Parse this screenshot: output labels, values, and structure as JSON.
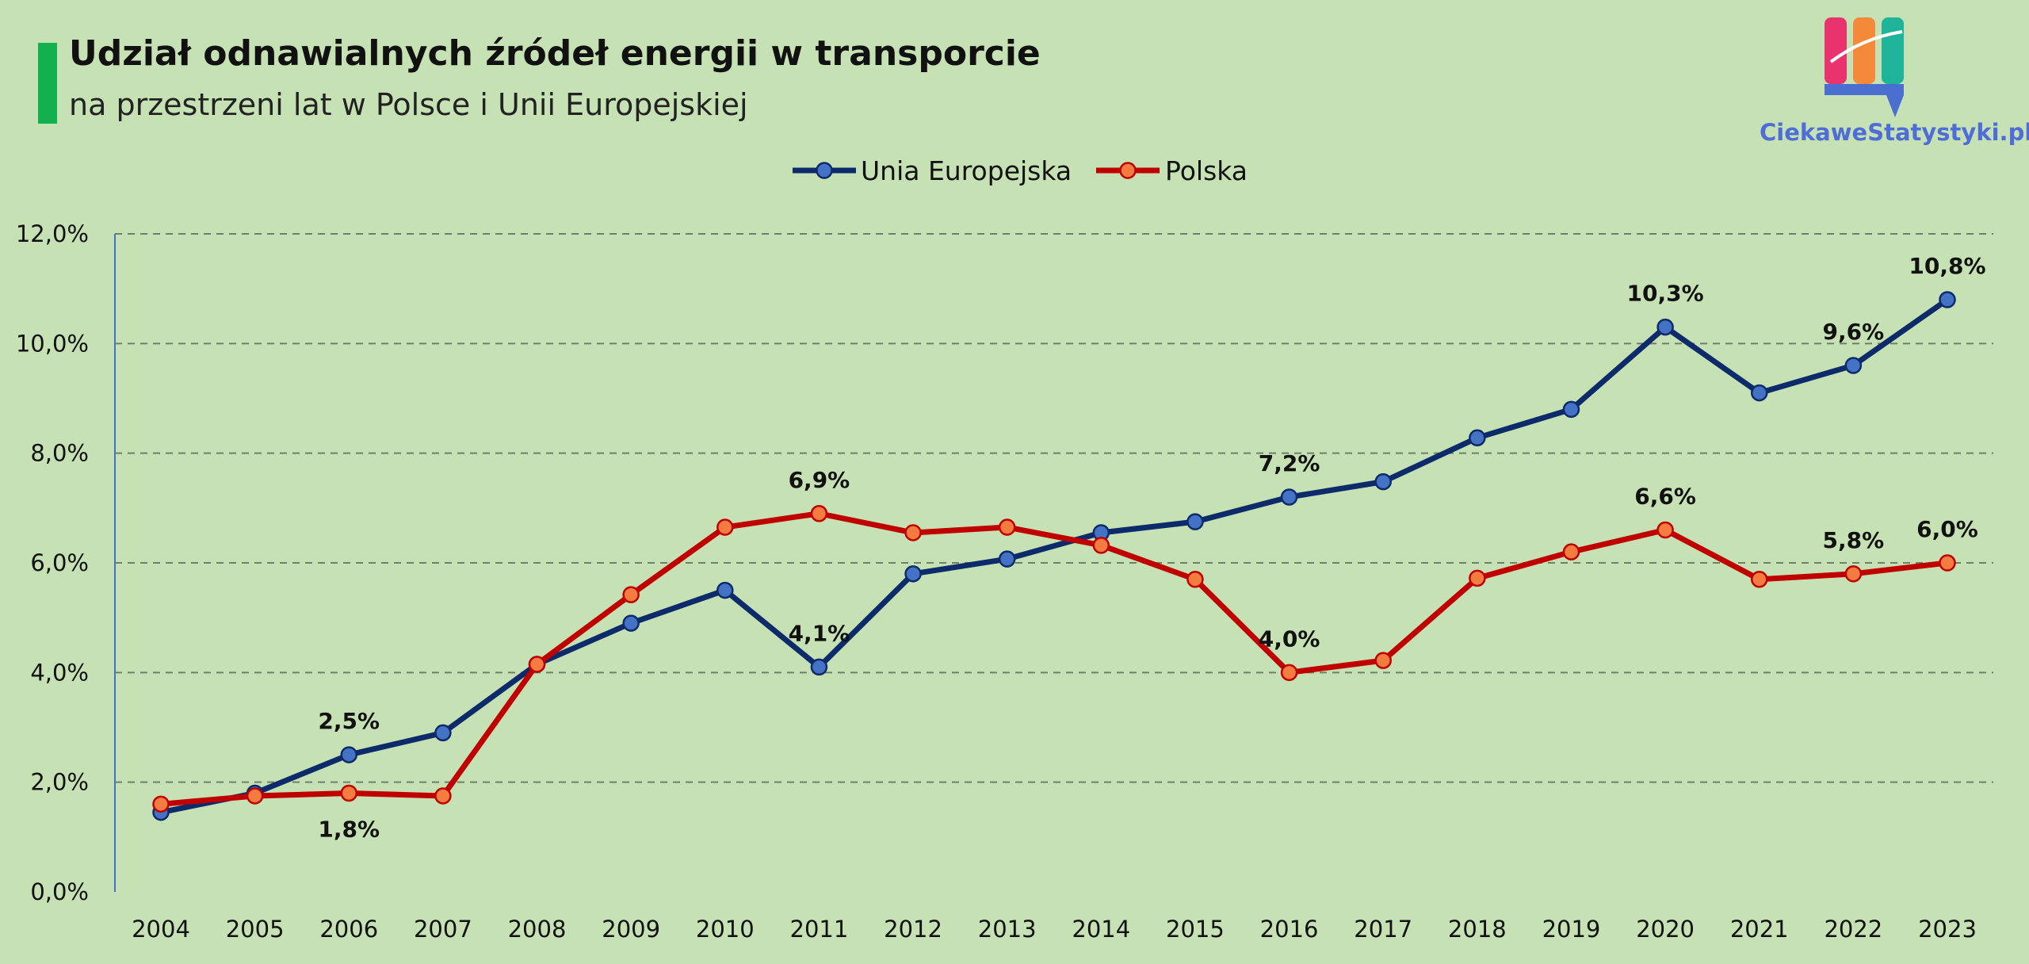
{
  "header": {
    "title": "Udział odnawialnych źródeł energii w transporcie",
    "subtitle": "na przestrzeni lat w Polsce i Unii Europejskiej"
  },
  "logo": {
    "text": "CiekaweStatystyki.pl"
  },
  "colors": {
    "background": "#c6e2b4",
    "eu_line": "#0d2a6b",
    "eu_marker": "#4472c4",
    "pl_line": "#c00000",
    "pl_marker": "#f47c40",
    "accent_bar": "#12b04f"
  },
  "chart_data": {
    "type": "line",
    "title": "Udział odnawialnych źródeł energii w transporcie",
    "subtitle": "na przestrzeni lat w Polsce i Unii Europejskiej",
    "xlabel": "",
    "ylabel": "",
    "ylim": [
      0,
      12
    ],
    "yticks": [
      0,
      2,
      4,
      6,
      8,
      10,
      12
    ],
    "ytick_labels": [
      "0,0%",
      "2,0%",
      "4,0%",
      "6,0%",
      "8,0%",
      "10,0%",
      "12,0%"
    ],
    "grid": true,
    "legend_position": "top-center",
    "categories": [
      "2004",
      "2005",
      "2006",
      "2007",
      "2008",
      "2009",
      "2010",
      "2011",
      "2012",
      "2013",
      "2014",
      "2015",
      "2016",
      "2017",
      "2018",
      "2019",
      "2020",
      "2021",
      "2022",
      "2023"
    ],
    "series": [
      {
        "name": "Unia Europejska",
        "values": [
          1.45,
          1.8,
          2.5,
          2.9,
          4.15,
          4.9,
          5.5,
          4.1,
          5.8,
          6.07,
          6.55,
          6.75,
          7.2,
          7.48,
          8.28,
          8.8,
          10.3,
          9.1,
          9.6,
          10.8
        ],
        "labels": [
          {
            "index": 2,
            "text": "2,5%",
            "position": "above"
          },
          {
            "index": 7,
            "text": "4,1%",
            "position": "above"
          },
          {
            "index": 12,
            "text": "7,2%",
            "position": "above"
          },
          {
            "index": 16,
            "text": "10,3%",
            "position": "above"
          },
          {
            "index": 18,
            "text": "9,6%",
            "position": "above"
          },
          {
            "index": 19,
            "text": "10,8%",
            "position": "above"
          }
        ]
      },
      {
        "name": "Polska",
        "values": [
          1.6,
          1.75,
          1.8,
          1.75,
          4.15,
          5.42,
          6.65,
          6.9,
          6.55,
          6.65,
          6.32,
          5.7,
          4.0,
          4.22,
          5.72,
          6.2,
          6.6,
          5.7,
          5.8,
          6.0
        ],
        "labels": [
          {
            "index": 2,
            "text": "1,8%",
            "position": "below"
          },
          {
            "index": 7,
            "text": "6,9%",
            "position": "above"
          },
          {
            "index": 12,
            "text": "4,0%",
            "position": "above"
          },
          {
            "index": 16,
            "text": "6,6%",
            "position": "above"
          },
          {
            "index": 18,
            "text": "5,8%",
            "position": "above"
          },
          {
            "index": 19,
            "text": "6,0%",
            "position": "above"
          }
        ]
      }
    ]
  }
}
